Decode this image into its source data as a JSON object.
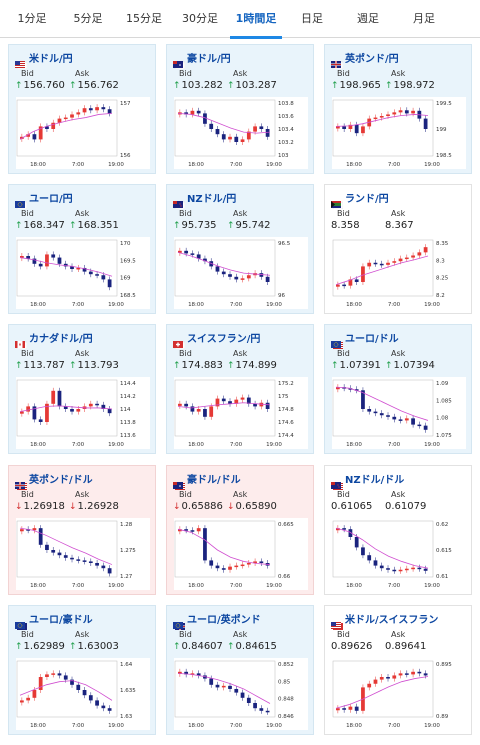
{
  "tabs": [
    "1分足",
    "5分足",
    "15分足",
    "30分足",
    "1時間足",
    "日足",
    "週足",
    "月足"
  ],
  "active_tab": 4,
  "labels": {
    "bid": "Bid",
    "ask": "Ask"
  },
  "time_labels": [
    "18:00",
    "7:00",
    "19:00"
  ],
  "colors": {
    "accent": "#1e88e5",
    "up": "#1e9e4a",
    "down": "#d32f2f",
    "candle_up": "#e53935",
    "candle_down": "#1a237e",
    "ma": "#d04fd0",
    "ma2": "#34b7c8"
  },
  "cards": [
    {
      "pair": "米ドル/円",
      "flag": "us-jp",
      "dir": "up",
      "bid": "156.760",
      "ask": "156.762",
      "y_ticks": [
        "157",
        "156"
      ],
      "shape": [
        0.35,
        0.4,
        0.3,
        0.55,
        0.5,
        0.62,
        0.7,
        0.72,
        0.78,
        0.82,
        0.9,
        0.86,
        0.92,
        0.88,
        0.8
      ],
      "ma": [
        0.3,
        0.45,
        0.55,
        0.62,
        0.68,
        0.72,
        0.78,
        0.8
      ]
    },
    {
      "pair": "豪ドル/円",
      "flag": "au-jp",
      "dir": "up",
      "bid": "103.282",
      "ask": "103.287",
      "y_ticks": [
        "103.8",
        "103.6",
        "103.4",
        "103.2",
        "103"
      ],
      "shape": [
        0.82,
        0.78,
        0.85,
        0.8,
        0.6,
        0.5,
        0.4,
        0.3,
        0.35,
        0.25,
        0.3,
        0.45,
        0.55,
        0.5,
        0.35
      ],
      "ma": [
        0.8,
        0.78,
        0.72,
        0.62,
        0.52,
        0.44,
        0.42,
        0.44
      ]
    },
    {
      "pair": "英ポンド/円",
      "flag": "uk-jp",
      "dir": "up",
      "bid": "198.965",
      "ask": "198.972",
      "y_ticks": [
        "199.5",
        "199",
        "198.5"
      ],
      "shape": [
        0.55,
        0.5,
        0.58,
        0.42,
        0.55,
        0.7,
        0.72,
        0.75,
        0.78,
        0.82,
        0.86,
        0.8,
        0.85,
        0.7,
        0.5
      ],
      "ma": [
        0.55,
        0.56,
        0.6,
        0.66,
        0.72,
        0.76,
        0.78,
        0.76
      ]
    },
    {
      "pair": "ユーロ/円",
      "flag": "eu-jp",
      "dir": "up",
      "bid": "168.347",
      "ask": "168.351",
      "y_ticks": [
        "170",
        "169.5",
        "169",
        "168.5"
      ],
      "shape": [
        0.75,
        0.7,
        0.6,
        0.55,
        0.78,
        0.72,
        0.6,
        0.55,
        0.5,
        0.52,
        0.45,
        0.4,
        0.38,
        0.3,
        0.15
      ],
      "ma": [
        0.72,
        0.68,
        0.62,
        0.58,
        0.55,
        0.5,
        0.44,
        0.36
      ]
    },
    {
      "pair": "NZドル/円",
      "flag": "nz-jp",
      "dir": "up",
      "bid": "95.735",
      "ask": "95.742",
      "y_ticks": [
        "96.5",
        "96"
      ],
      "shape": [
        0.85,
        0.8,
        0.78,
        0.7,
        0.65,
        0.55,
        0.45,
        0.4,
        0.35,
        0.3,
        0.32,
        0.38,
        0.42,
        0.35,
        0.25
      ],
      "ma": [
        0.82,
        0.75,
        0.66,
        0.56,
        0.48,
        0.42,
        0.4,
        0.38
      ]
    },
    {
      "pair": "ランド/円",
      "flag": "za-jp",
      "dir": "flat",
      "bid": "8.358",
      "ask": "8.367",
      "y_ticks": [
        "8.35",
        "8.3",
        "8.25",
        "8.2"
      ],
      "shape": [
        0.2,
        0.18,
        0.3,
        0.25,
        0.55,
        0.62,
        0.6,
        0.58,
        0.62,
        0.65,
        0.7,
        0.72,
        0.76,
        0.82,
        0.92
      ],
      "ma": [
        0.2,
        0.28,
        0.38,
        0.46,
        0.54,
        0.62,
        0.68,
        0.75
      ]
    },
    {
      "pair": "カナダドル/円",
      "flag": "ca-jp",
      "dir": "up",
      "bid": "113.787",
      "ask": "113.793",
      "y_ticks": [
        "114.4",
        "114.2",
        "114",
        "113.8",
        "113.6"
      ],
      "shape": [
        0.45,
        0.55,
        0.3,
        0.25,
        0.6,
        0.85,
        0.55,
        0.5,
        0.45,
        0.5,
        0.55,
        0.6,
        0.58,
        0.5,
        0.42
      ],
      "ma": [
        0.45,
        0.5,
        0.55,
        0.56,
        0.54,
        0.52,
        0.52,
        0.5
      ]
    },
    {
      "pair": "スイスフラン/円",
      "flag": "ch-jp",
      "dir": "up",
      "bid": "174.883",
      "ask": "174.899",
      "y_ticks": [
        "175.2",
        "175",
        "174.8",
        "174.6",
        "174.4"
      ],
      "shape": [
        0.6,
        0.55,
        0.45,
        0.5,
        0.35,
        0.55,
        0.7,
        0.65,
        0.6,
        0.68,
        0.72,
        0.6,
        0.55,
        0.62,
        0.5
      ],
      "ma": [
        0.55,
        0.52,
        0.55,
        0.58,
        0.6,
        0.62,
        0.6,
        0.58
      ]
    },
    {
      "pair": "ユーロ/ドル",
      "flag": "eu-us",
      "dir": "up",
      "bid": "1.07391",
      "ask": "1.07394",
      "y_ticks": [
        "1.09",
        "1.085",
        "1.08",
        "1.075"
      ],
      "shape": [
        0.92,
        0.9,
        0.88,
        0.86,
        0.5,
        0.45,
        0.42,
        0.38,
        0.35,
        0.3,
        0.28,
        0.32,
        0.2,
        0.18,
        0.1
      ],
      "ma": [
        0.92,
        0.9,
        0.82,
        0.7,
        0.58,
        0.46,
        0.36,
        0.28
      ]
    },
    {
      "pair": "英ポンド/ドル",
      "flag": "uk-us",
      "dir": "down",
      "bid": "1.26918",
      "ask": "1.26928",
      "y_ticks": [
        "1.28",
        "1.275",
        "1.27"
      ],
      "shape": [
        0.9,
        0.88,
        0.92,
        0.6,
        0.5,
        0.45,
        0.4,
        0.35,
        0.32,
        0.3,
        0.28,
        0.25,
        0.2,
        0.15,
        0.05
      ],
      "ma": [
        0.92,
        0.88,
        0.78,
        0.66,
        0.54,
        0.44,
        0.32,
        0.22
      ]
    },
    {
      "pair": "豪ドル/ドル",
      "flag": "au-us",
      "dir": "down",
      "bid": "0.65886",
      "ask": "0.65890",
      "y_ticks": [
        "0.665",
        "0.66"
      ],
      "shape": [
        0.9,
        0.88,
        0.86,
        0.92,
        0.3,
        0.2,
        0.15,
        0.12,
        0.18,
        0.2,
        0.22,
        0.25,
        0.28,
        0.25,
        0.2
      ],
      "ma": [
        0.9,
        0.84,
        0.7,
        0.5,
        0.36,
        0.28,
        0.24,
        0.22
      ]
    },
    {
      "pair": "NZドル/ドル",
      "flag": "nz-us",
      "dir": "flat",
      "bid": "0.61065",
      "ask": "0.61079",
      "y_ticks": [
        "0.62",
        "0.615",
        "0.61"
      ],
      "shape": [
        0.92,
        0.9,
        0.75,
        0.55,
        0.4,
        0.3,
        0.2,
        0.15,
        0.12,
        0.1,
        0.12,
        0.14,
        0.16,
        0.14,
        0.1
      ],
      "ma": [
        0.92,
        0.85,
        0.7,
        0.52,
        0.38,
        0.28,
        0.2,
        0.15
      ]
    },
    {
      "pair": "ユーロ/豪ドル",
      "flag": "eu-au",
      "dir": "up",
      "bid": "1.62989",
      "ask": "1.63003",
      "y_ticks": [
        "1.64",
        "1.635",
        "1.63"
      ],
      "shape": [
        0.3,
        0.35,
        0.5,
        0.75,
        0.8,
        0.82,
        0.78,
        0.7,
        0.6,
        0.5,
        0.4,
        0.3,
        0.2,
        0.15,
        0.1
      ],
      "ma": [
        0.4,
        0.5,
        0.6,
        0.66,
        0.68,
        0.6,
        0.46,
        0.3
      ]
    },
    {
      "pair": "ユーロ/英ポンド",
      "flag": "eu-uk",
      "dir": "up",
      "bid": "0.84607",
      "ask": "0.84615",
      "y_ticks": [
        "0.852",
        "0.85",
        "0.848",
        "0.846"
      ],
      "shape": [
        0.85,
        0.8,
        0.82,
        0.78,
        0.72,
        0.6,
        0.55,
        0.58,
        0.52,
        0.45,
        0.35,
        0.25,
        0.15,
        0.1,
        0.08
      ],
      "ma": [
        0.82,
        0.8,
        0.76,
        0.7,
        0.62,
        0.52,
        0.38,
        0.24
      ]
    },
    {
      "pair": "米ドル/スイスフラン",
      "flag": "us-ch",
      "dir": "flat",
      "bid": "0.89626",
      "ask": "0.89641",
      "y_ticks": [
        "0.895",
        "0.89"
      ],
      "shape": [
        0.15,
        0.12,
        0.18,
        0.1,
        0.55,
        0.62,
        0.7,
        0.75,
        0.72,
        0.78,
        0.82,
        0.8,
        0.85,
        0.82,
        0.78
      ],
      "ma": [
        0.15,
        0.22,
        0.32,
        0.44,
        0.56,
        0.66,
        0.72,
        0.76
      ]
    }
  ]
}
